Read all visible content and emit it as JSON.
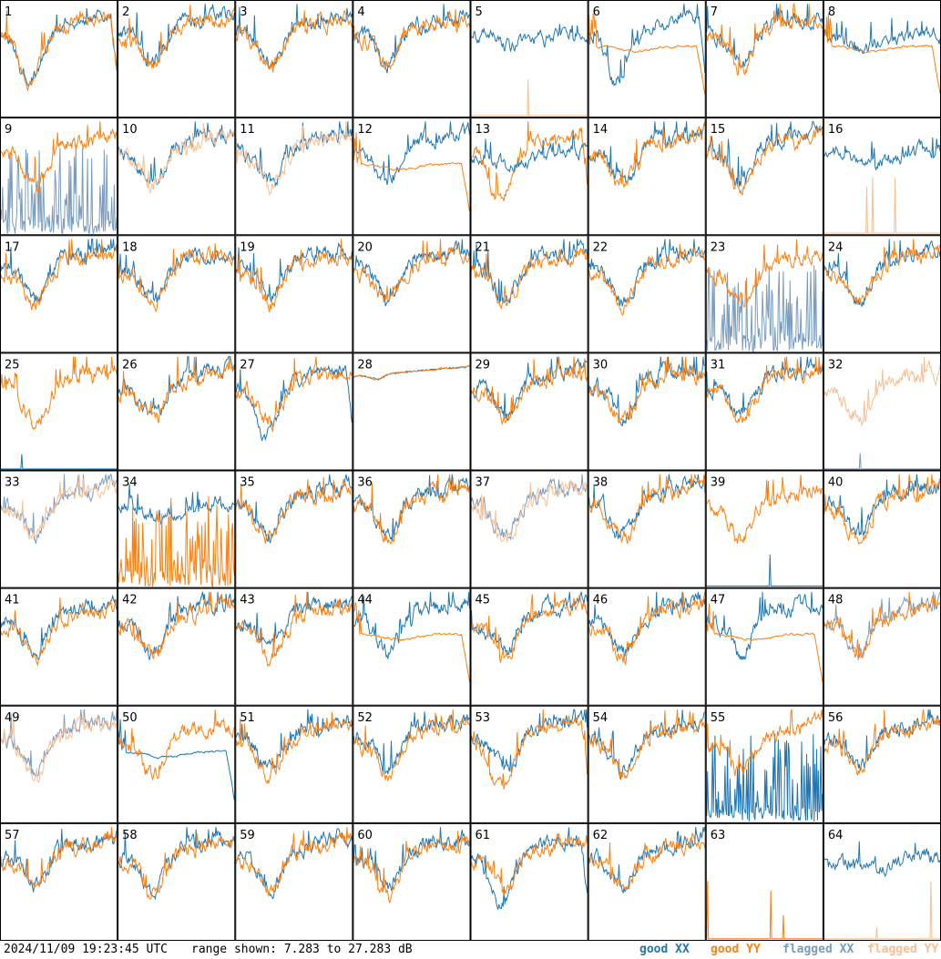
{
  "footer": {
    "timestamp": "2024/11/09 19:23:45 UTC",
    "range_label": "range shown: 7.283 to 27.283 dB"
  },
  "legend": {
    "good_xx": {
      "label": "good XX",
      "color": "#1f77b4"
    },
    "good_yy": {
      "label": "good YY",
      "color": "#ff7f0e"
    },
    "flagged_xx": {
      "label": "flagged XX",
      "color": "#7a9cbf"
    },
    "flagged_yy": {
      "label": "flagged YY",
      "color": "#f9be91"
    }
  },
  "chart_data": {
    "type": "line",
    "ylim": [
      7.283,
      27.283
    ],
    "grid": {
      "rows": 8,
      "cols": 8
    },
    "panels": [
      {
        "id": "1",
        "xx_flag": "good",
        "yy_flag": "good",
        "xx_style": "drop",
        "yy_style": "drop"
      },
      {
        "id": "2",
        "xx_flag": "good",
        "yy_flag": "good",
        "xx_style": "normal",
        "yy_style": "normal"
      },
      {
        "id": "3",
        "xx_flag": "good",
        "yy_flag": "good",
        "xx_style": "normal",
        "yy_style": "normal"
      },
      {
        "id": "4",
        "xx_flag": "good",
        "yy_flag": "good",
        "xx_style": "normal",
        "yy_style": "normal"
      },
      {
        "id": "5",
        "xx_flag": "good",
        "yy_flag": "flagged",
        "xx_style": "high",
        "yy_style": "spikes"
      },
      {
        "id": "6",
        "xx_flag": "good",
        "yy_flag": "good",
        "xx_style": "drop",
        "yy_style": "smooth"
      },
      {
        "id": "7",
        "xx_flag": "good",
        "yy_flag": "good",
        "xx_style": "normal",
        "yy_style": "normal"
      },
      {
        "id": "8",
        "xx_flag": "good",
        "yy_flag": "good",
        "xx_style": "high",
        "yy_style": "smooth"
      },
      {
        "id": "9",
        "xx_flag": "flagged",
        "yy_flag": "good",
        "xx_style": "noise",
        "yy_style": "normal"
      },
      {
        "id": "10",
        "xx_flag": "good",
        "yy_flag": "flagged",
        "xx_style": "normal",
        "yy_style": "normal"
      },
      {
        "id": "11",
        "xx_flag": "good",
        "yy_flag": "flagged",
        "xx_style": "normal",
        "yy_style": "normal"
      },
      {
        "id": "12",
        "xx_flag": "good",
        "yy_flag": "good",
        "xx_style": "normal",
        "yy_style": "smooth"
      },
      {
        "id": "13",
        "xx_flag": "good",
        "yy_flag": "good",
        "xx_style": "high",
        "yy_style": "drop"
      },
      {
        "id": "14",
        "xx_flag": "good",
        "yy_flag": "good",
        "xx_style": "normal",
        "yy_style": "normal"
      },
      {
        "id": "15",
        "xx_flag": "good",
        "yy_flag": "good",
        "xx_style": "normal",
        "yy_style": "normal"
      },
      {
        "id": "16",
        "xx_flag": "good",
        "yy_flag": "flagged",
        "xx_style": "high",
        "yy_style": "spikes"
      },
      {
        "id": "17",
        "xx_flag": "good",
        "yy_flag": "good",
        "xx_style": "normal",
        "yy_style": "normal"
      },
      {
        "id": "18",
        "xx_flag": "good",
        "yy_flag": "good",
        "xx_style": "normal",
        "yy_style": "normal"
      },
      {
        "id": "19",
        "xx_flag": "good",
        "yy_flag": "good",
        "xx_style": "normal",
        "yy_style": "normal"
      },
      {
        "id": "20",
        "xx_flag": "good",
        "yy_flag": "good",
        "xx_style": "normal",
        "yy_style": "normal"
      },
      {
        "id": "21",
        "xx_flag": "good",
        "yy_flag": "good",
        "xx_style": "normal",
        "yy_style": "normal"
      },
      {
        "id": "22",
        "xx_flag": "good",
        "yy_flag": "good",
        "xx_style": "normal",
        "yy_style": "normal"
      },
      {
        "id": "23",
        "xx_flag": "flagged",
        "yy_flag": "good",
        "xx_style": "noise",
        "yy_style": "normal"
      },
      {
        "id": "24",
        "xx_flag": "good",
        "yy_flag": "good",
        "xx_style": "normal",
        "yy_style": "normal"
      },
      {
        "id": "25",
        "xx_flag": "good",
        "yy_flag": "good",
        "xx_style": "low",
        "yy_style": "normal"
      },
      {
        "id": "26",
        "xx_flag": "good",
        "yy_flag": "good",
        "xx_style": "normal",
        "yy_style": "normal"
      },
      {
        "id": "27",
        "xx_flag": "good",
        "yy_flag": "good",
        "xx_style": "drop",
        "yy_style": "normal"
      },
      {
        "id": "28",
        "xx_flag": "good",
        "yy_flag": "good",
        "xx_style": "flat",
        "yy_style": "flat"
      },
      {
        "id": "29",
        "xx_flag": "good",
        "yy_flag": "good",
        "xx_style": "normal",
        "yy_style": "normal"
      },
      {
        "id": "30",
        "xx_flag": "good",
        "yy_flag": "good",
        "xx_style": "normal",
        "yy_style": "normal"
      },
      {
        "id": "31",
        "xx_flag": "good",
        "yy_flag": "good",
        "xx_style": "normal",
        "yy_style": "normal"
      },
      {
        "id": "32",
        "xx_flag": "flagged",
        "yy_flag": "flagged",
        "xx_style": "low",
        "yy_style": "normal"
      },
      {
        "id": "33",
        "xx_flag": "flagged",
        "yy_flag": "flagged",
        "xx_style": "normal",
        "yy_style": "normal"
      },
      {
        "id": "34",
        "xx_flag": "good",
        "yy_flag": "good",
        "xx_style": "high",
        "yy_style": "noise"
      },
      {
        "id": "35",
        "xx_flag": "good",
        "yy_flag": "good",
        "xx_style": "normal",
        "yy_style": "normal"
      },
      {
        "id": "36",
        "xx_flag": "good",
        "yy_flag": "good",
        "xx_style": "normal",
        "yy_style": "normal"
      },
      {
        "id": "37",
        "xx_flag": "flagged",
        "yy_flag": "flagged",
        "xx_style": "normal",
        "yy_style": "normal"
      },
      {
        "id": "38",
        "xx_flag": "good",
        "yy_flag": "good",
        "xx_style": "normal",
        "yy_style": "normal"
      },
      {
        "id": "39",
        "xx_flag": "good",
        "yy_flag": "good",
        "xx_style": "spikes",
        "yy_style": "normal"
      },
      {
        "id": "40",
        "xx_flag": "good",
        "yy_flag": "good",
        "xx_style": "normal",
        "yy_style": "normal"
      },
      {
        "id": "41",
        "xx_flag": "good",
        "yy_flag": "good",
        "xx_style": "normal",
        "yy_style": "normal"
      },
      {
        "id": "42",
        "xx_flag": "good",
        "yy_flag": "good",
        "xx_style": "normal",
        "yy_style": "normal"
      },
      {
        "id": "43",
        "xx_flag": "good",
        "yy_flag": "good",
        "xx_style": "normal",
        "yy_style": "normal"
      },
      {
        "id": "44",
        "xx_flag": "good",
        "yy_flag": "good",
        "xx_style": "normal",
        "yy_style": "smooth"
      },
      {
        "id": "45",
        "xx_flag": "good",
        "yy_flag": "good",
        "xx_style": "normal",
        "yy_style": "normal"
      },
      {
        "id": "46",
        "xx_flag": "good",
        "yy_flag": "good",
        "xx_style": "normal",
        "yy_style": "normal"
      },
      {
        "id": "47",
        "xx_flag": "good",
        "yy_flag": "good",
        "xx_style": "normal",
        "yy_style": "smooth"
      },
      {
        "id": "48",
        "xx_flag": "flagged",
        "yy_flag": "good",
        "xx_style": "normal",
        "yy_style": "normal"
      },
      {
        "id": "49",
        "xx_flag": "flagged",
        "yy_flag": "flagged",
        "xx_style": "normal",
        "yy_style": "normal"
      },
      {
        "id": "50",
        "xx_flag": "good",
        "yy_flag": "good",
        "xx_style": "smooth",
        "yy_style": "normal"
      },
      {
        "id": "51",
        "xx_flag": "good",
        "yy_flag": "good",
        "xx_style": "normal",
        "yy_style": "normal"
      },
      {
        "id": "52",
        "xx_flag": "good",
        "yy_flag": "good",
        "xx_style": "normal",
        "yy_style": "normal"
      },
      {
        "id": "53",
        "xx_flag": "good",
        "yy_flag": "good",
        "xx_style": "normal",
        "yy_style": "drop"
      },
      {
        "id": "54",
        "xx_flag": "good",
        "yy_flag": "good",
        "xx_style": "normal",
        "yy_style": "normal"
      },
      {
        "id": "55",
        "xx_flag": "good",
        "yy_flag": "good",
        "xx_style": "noise",
        "yy_style": "normal"
      },
      {
        "id": "56",
        "xx_flag": "good",
        "yy_flag": "good",
        "xx_style": "normal",
        "yy_style": "normal"
      },
      {
        "id": "57",
        "xx_flag": "good",
        "yy_flag": "good",
        "xx_style": "normal",
        "yy_style": "normal"
      },
      {
        "id": "58",
        "xx_flag": "good",
        "yy_flag": "good",
        "xx_style": "normal",
        "yy_style": "normal"
      },
      {
        "id": "59",
        "xx_flag": "good",
        "yy_flag": "good",
        "xx_style": "normal",
        "yy_style": "normal"
      },
      {
        "id": "60",
        "xx_flag": "good",
        "yy_flag": "good",
        "xx_style": "normal",
        "yy_style": "normal"
      },
      {
        "id": "61",
        "xx_flag": "good",
        "yy_flag": "good",
        "xx_style": "drop",
        "yy_style": "normal"
      },
      {
        "id": "62",
        "xx_flag": "good",
        "yy_flag": "good",
        "xx_style": "normal",
        "yy_style": "normal"
      },
      {
        "id": "63",
        "xx_flag": "good",
        "yy_flag": "good",
        "xx_style": "none",
        "yy_style": "spikes"
      },
      {
        "id": "64",
        "xx_flag": "good",
        "yy_flag": "flagged",
        "xx_style": "high",
        "yy_style": "spikes"
      }
    ]
  }
}
